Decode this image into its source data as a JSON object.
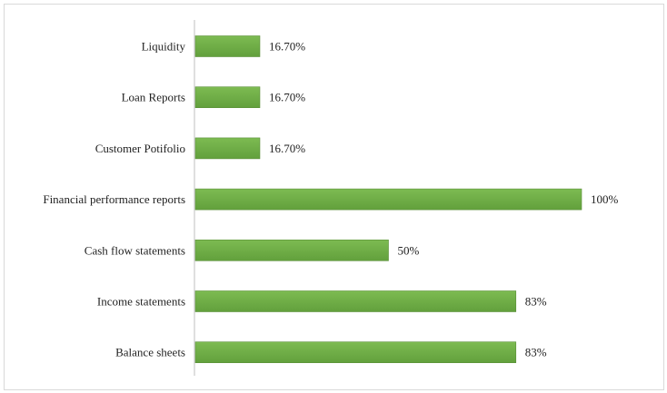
{
  "chart_data": {
    "type": "bar",
    "orientation": "horizontal",
    "categories": [
      "Liquidity",
      "Loan Reports",
      "Customer Potifolio",
      "Financial performance reports",
      "Cash flow statements",
      "Income statements",
      "Balance sheets"
    ],
    "values": [
      16.7,
      16.7,
      16.7,
      100,
      50,
      83,
      83
    ],
    "value_labels": [
      "16.70%",
      "16.70%",
      "16.70%",
      "100%",
      "50%",
      "83%",
      "83%"
    ],
    "title": "",
    "xlabel": "",
    "ylabel": "",
    "xlim": [
      0,
      100
    ],
    "grid": false,
    "legend": "none",
    "bar_color": "#70ad47",
    "bar_edge_color": "#5a8f39",
    "axis_color": "#bfbfbf"
  }
}
